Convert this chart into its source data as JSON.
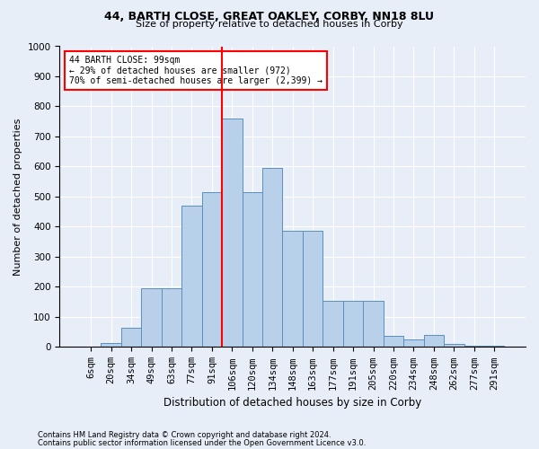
{
  "title1": "44, BARTH CLOSE, GREAT OAKLEY, CORBY, NN18 8LU",
  "title2": "Size of property relative to detached houses in Corby",
  "xlabel": "Distribution of detached houses by size in Corby",
  "ylabel": "Number of detached properties",
  "categories": [
    "6sqm",
    "20sqm",
    "34sqm",
    "49sqm",
    "63sqm",
    "77sqm",
    "91sqm",
    "106sqm",
    "120sqm",
    "134sqm",
    "148sqm",
    "163sqm",
    "177sqm",
    "191sqm",
    "205sqm",
    "220sqm",
    "234sqm",
    "248sqm",
    "262sqm",
    "277sqm",
    "291sqm"
  ],
  "values": [
    0,
    12,
    65,
    195,
    195,
    470,
    515,
    760,
    515,
    595,
    385,
    385,
    155,
    155,
    155,
    38,
    25,
    40,
    10,
    5,
    3
  ],
  "bar_color": "#b8d0ea",
  "bar_edge_color": "#5a8fc0",
  "vline_color": "red",
  "annotation_text": "44 BARTH CLOSE: 99sqm\n← 29% of detached houses are smaller (972)\n70% of semi-detached houses are larger (2,399) →",
  "annotation_box_color": "white",
  "annotation_box_edge": "red",
  "ylim": [
    0,
    1000
  ],
  "yticks": [
    0,
    100,
    200,
    300,
    400,
    500,
    600,
    700,
    800,
    900,
    1000
  ],
  "footer1": "Contains HM Land Registry data © Crown copyright and database right 2024.",
  "footer2": "Contains public sector information licensed under the Open Government Licence v3.0.",
  "bg_color": "#e8eef8",
  "plot_bg_color": "#e8eef8",
  "grid_color": "#ffffff",
  "title1_fontsize": 9,
  "title2_fontsize": 8,
  "ylabel_fontsize": 8,
  "xlabel_fontsize": 8.5,
  "tick_fontsize": 7.5,
  "ann_fontsize": 7,
  "footer_fontsize": 6
}
